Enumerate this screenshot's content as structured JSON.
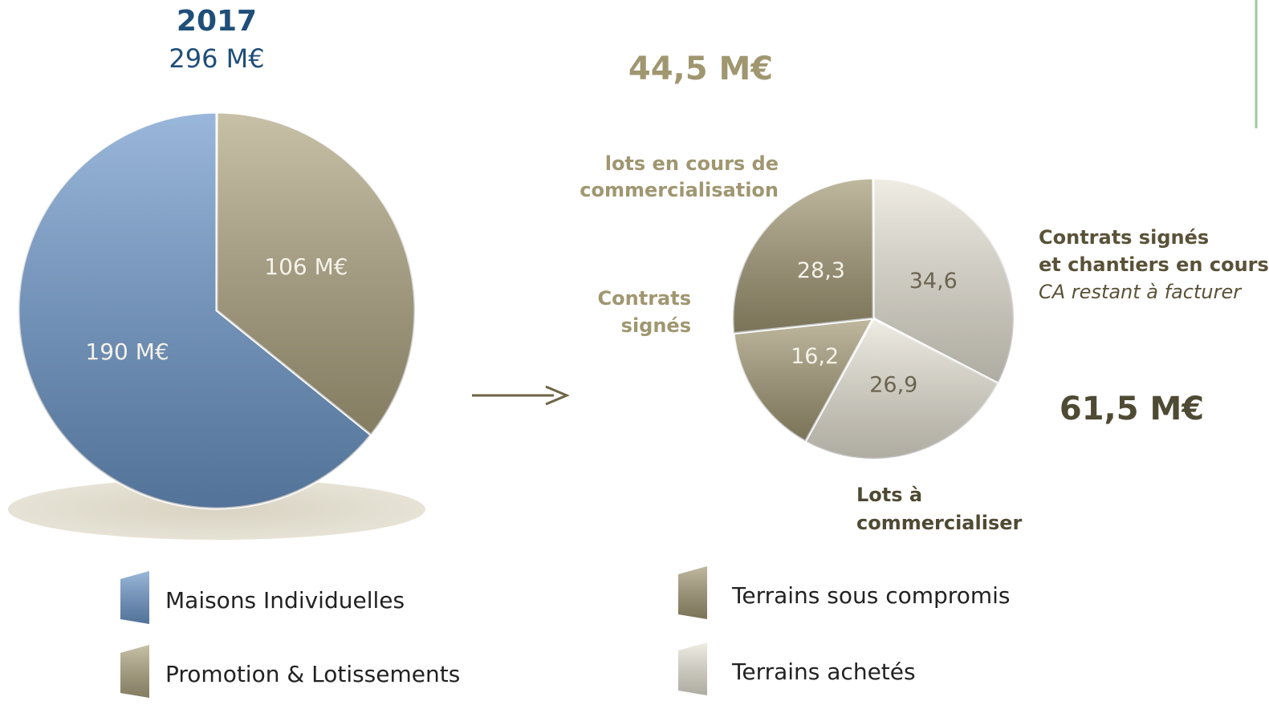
{
  "chart_data": [
    {
      "type": "pie",
      "title": "2017",
      "subtitle": "296 M€",
      "values": [
        190,
        106
      ],
      "value_labels": [
        "190 M€",
        "106 M€"
      ],
      "colors": [
        "#6f99cc",
        "#b0a682"
      ],
      "counterclock": true,
      "legend": [
        {
          "name": "Maisons Individuelles",
          "color": "#6f99cc"
        },
        {
          "name": "Promotion & Lotissements",
          "color": "#b0a682"
        }
      ]
    },
    {
      "type": "pie",
      "values": [
        34.6,
        26.9,
        16.2,
        28.3
      ],
      "value_labels": [
        "34,6",
        "26,9",
        "16,2",
        "28,3"
      ],
      "colors": [
        "#e9e5d8",
        "#e9e5d8",
        "#a49a76",
        "#a49a76"
      ],
      "counterclock": false,
      "annotations": [
        {
          "lines": [
            "44,5 M€"
          ]
        },
        {
          "lines": [
            "lots en cours de",
            "commercialisation"
          ]
        },
        {
          "lines": [
            "Contrats",
            "signés"
          ]
        },
        {
          "lines": [
            "Contrats signés",
            "et chantiers en cours"
          ]
        },
        {
          "lines": [
            "CA restant à facturer"
          ]
        },
        {
          "lines": [
            "61,5 M€"
          ]
        },
        {
          "lines": [
            "Lots à",
            "commercialiser"
          ]
        }
      ],
      "legend": [
        {
          "name": "Terrains sous compromis",
          "color": "#a49a76"
        },
        {
          "name": "Terrains achetés",
          "color": "#e9e5d8"
        }
      ]
    }
  ]
}
